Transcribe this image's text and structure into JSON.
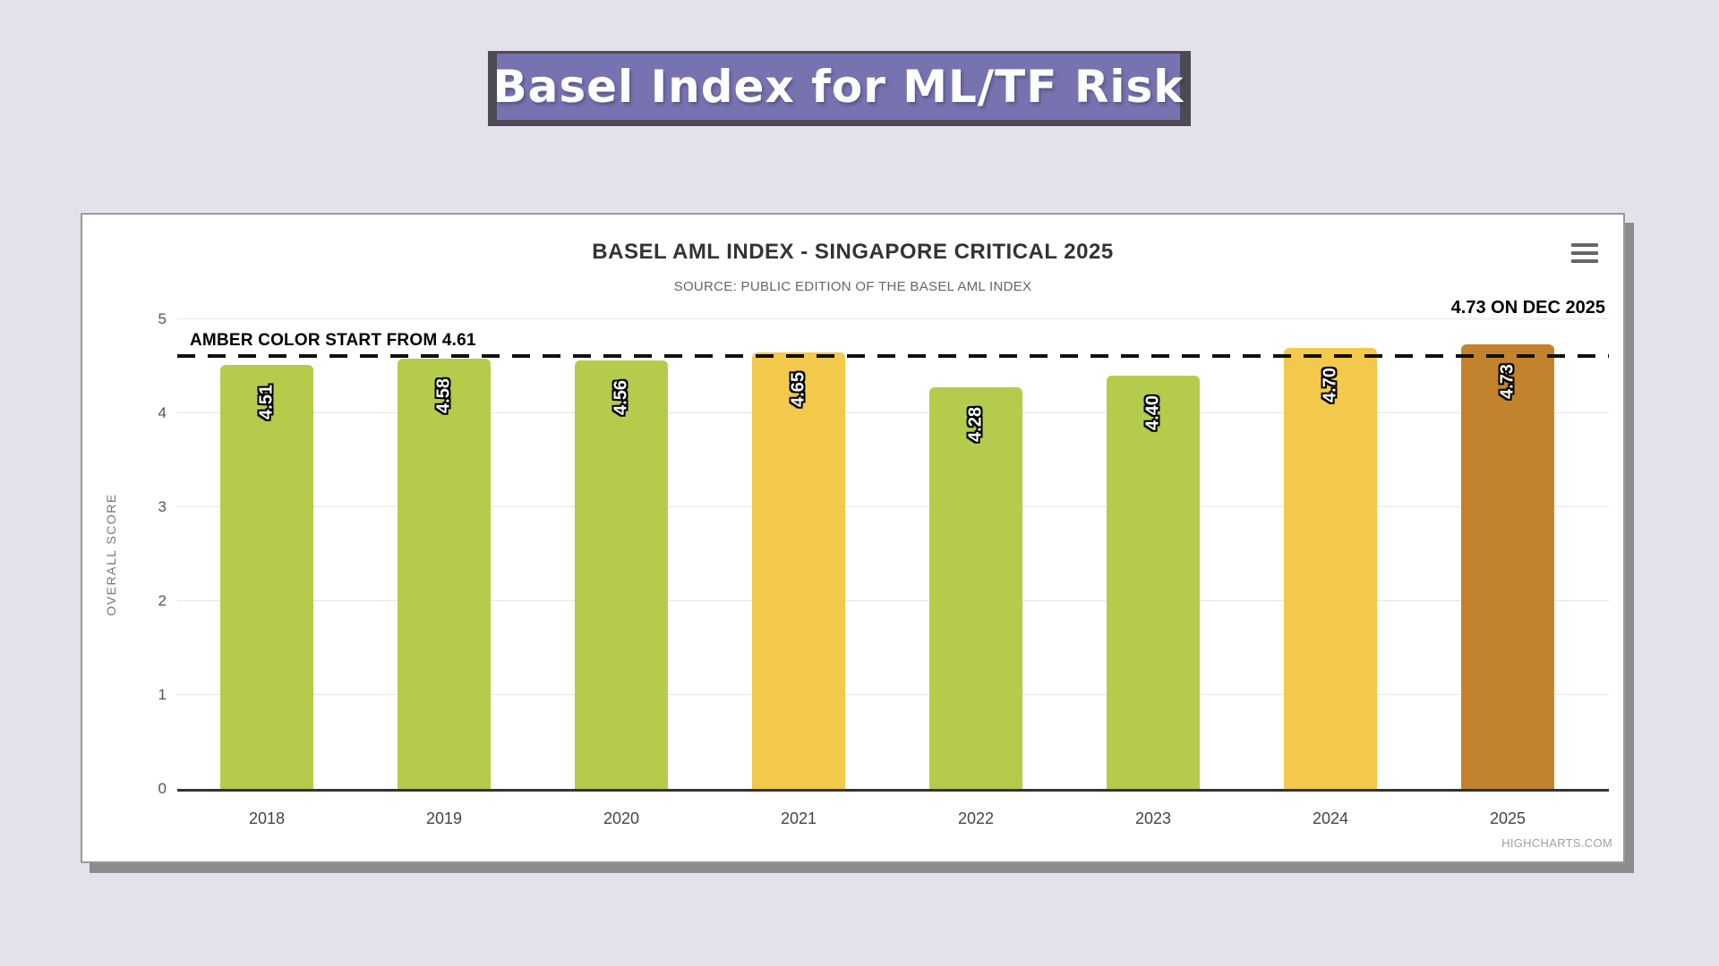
{
  "banner": {
    "title": "Basel Index for ML/TF Risk"
  },
  "chart": {
    "title": "BASEL AML INDEX - SINGAPORE CRITICAL 2025",
    "subtitle": "SOURCE: PUBLIC EDITION OF THE BASEL AML INDEX",
    "y_axis_title": "OVERALL SCORE",
    "threshold_label": "AMBER COLOR START FROM 4.61",
    "annotation": "4.73 ON DEC 2025",
    "credit": "HIGHCHARTS.COM",
    "menu_icon": "hamburger-icon"
  },
  "colors": {
    "green": "#b5cb4b",
    "amber": "#f2c94a",
    "brown": "#c2832c",
    "banner_bg": "#7773b1",
    "page_bg": "#e5e1eb"
  },
  "chart_data": {
    "type": "bar",
    "categories": [
      "2018",
      "2019",
      "2020",
      "2021",
      "2022",
      "2023",
      "2024",
      "2025"
    ],
    "values": [
      4.51,
      4.58,
      4.56,
      4.65,
      4.28,
      4.4,
      4.7,
      4.73
    ],
    "value_labels": [
      "4.51",
      "4.58",
      "4.56",
      "4.65",
      "4.28",
      "4.40",
      "4.70",
      "4.73"
    ],
    "bar_colors": [
      "green",
      "green",
      "green",
      "amber",
      "green",
      "green",
      "amber",
      "brown"
    ],
    "title": "BASEL AML INDEX - SINGAPORE CRITICAL 2025",
    "subtitle": "SOURCE: PUBLIC EDITION OF THE BASEL AML INDEX",
    "xlabel": "",
    "ylabel": "OVERALL SCORE",
    "ylim": [
      0,
      5
    ],
    "y_ticks": [
      0,
      1,
      2,
      3,
      4,
      5
    ],
    "grid": true,
    "legend": false,
    "threshold": {
      "value": 4.61,
      "label": "AMBER COLOR START FROM 4.61",
      "style": "dashed-black"
    },
    "annotation": {
      "text": "4.73 ON DEC 2025",
      "position": "top-right"
    }
  }
}
